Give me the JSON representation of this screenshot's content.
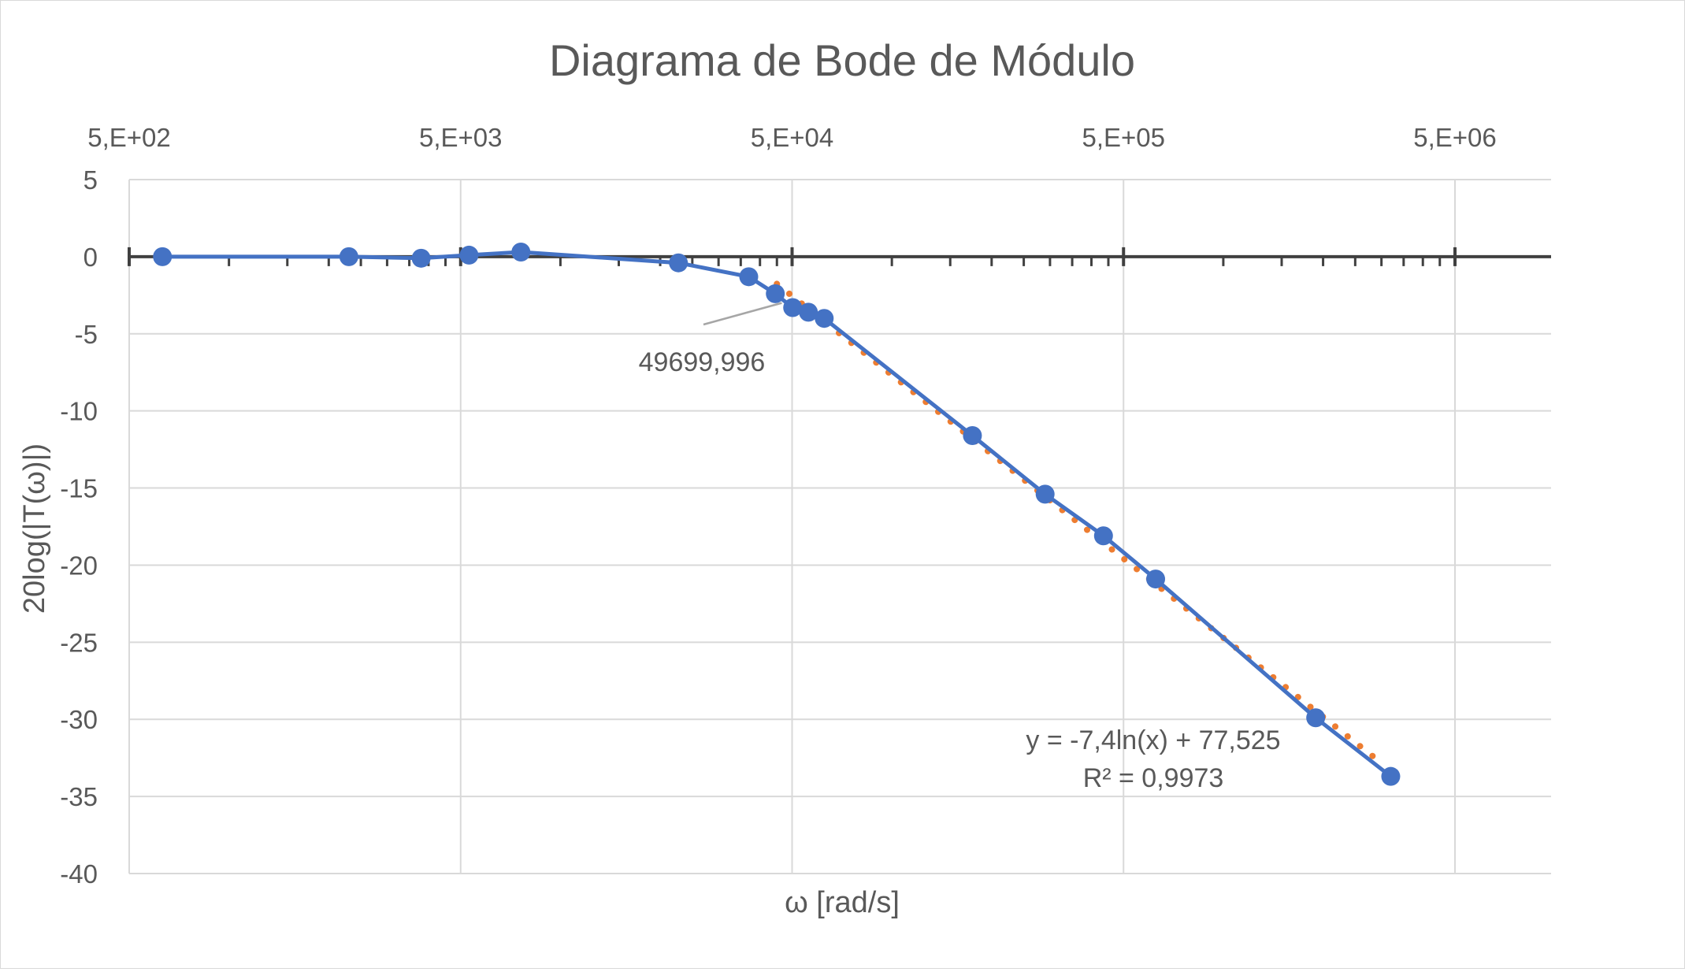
{
  "chart_data": {
    "type": "scatter",
    "title": "Diagrama de Bode de Módulo",
    "xlabel": "ω [rad/s]",
    "ylabel": "20log(|T(ω)|)",
    "x_scale": "log",
    "xlim": [
      500,
      5000000
    ],
    "ylim": [
      -40,
      5
    ],
    "x_tick_values": [
      500,
      5000,
      50000,
      500000,
      5000000
    ],
    "x_tick_labels": [
      "5,E+02",
      "5,E+03",
      "5,E+04",
      "5,E+05",
      "5,E+06"
    ],
    "y_ticks": [
      5,
      0,
      -5,
      -10,
      -15,
      -20,
      -25,
      -30,
      -35,
      -40
    ],
    "grid": true,
    "legend": "none",
    "series": [
      {
        "color": "#4472c4",
        "x": [
          630,
          2300,
          3800,
          5300,
          7600,
          22700,
          37000,
          44500,
          50200,
          56000,
          62500,
          175000,
          290000,
          435000,
          625000,
          1900000,
          3200000
        ],
        "y": [
          0.0,
          0.0,
          -0.1,
          0.1,
          0.3,
          -0.4,
          -1.3,
          -2.4,
          -3.3,
          -3.6,
          -4.0,
          -11.6,
          -15.4,
          -18.1,
          -20.9,
          -29.9,
          -33.7
        ]
      }
    ],
    "trendline": {
      "type": "logarithmic",
      "color": "#ed7d31",
      "a": -7.4,
      "b": 77.525,
      "x_range": [
        45000,
        3000000
      ],
      "equation_label": "y = -7,4ln(x) + 77,525",
      "r2_label": "R² = 0,9973"
    },
    "annotations": [
      {
        "text": "49699,996",
        "x": 49700,
        "y": -3.0
      }
    ]
  }
}
